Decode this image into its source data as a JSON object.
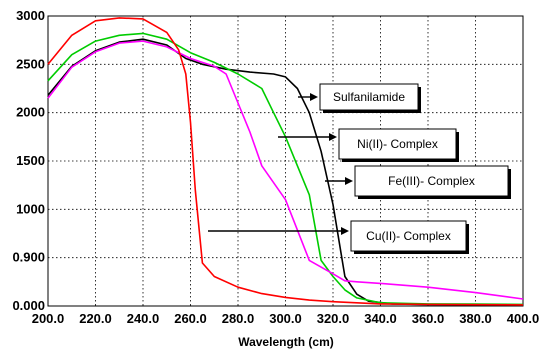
{
  "chart_data": {
    "type": "line",
    "title": "",
    "xlabel": "Wavelength (cm)",
    "ylabel": "",
    "xlim": [
      200,
      400
    ],
    "x_ticks": [
      "200.0",
      "220.0",
      "240.0",
      "260.0",
      "280.0",
      "300.0",
      "320.0",
      "340.0",
      "360.0",
      "380.0",
      "400.0"
    ],
    "y_ticks": [
      "0.000",
      "0.900",
      "1000",
      "1500",
      "2000",
      "2500",
      "3000"
    ],
    "grid": true,
    "series": [
      {
        "name": "Sulfanilamide",
        "color": "#000000",
        "x": [
          200,
          210,
          220,
          230,
          240,
          250,
          258,
          265,
          275,
          285,
          295,
          300,
          305,
          310,
          315,
          320,
          325,
          330,
          335,
          345,
          360,
          380,
          400
        ],
        "y": [
          2180,
          2480,
          2640,
          2730,
          2760,
          2700,
          2560,
          2500,
          2450,
          2420,
          2400,
          2370,
          2250,
          2000,
          1600,
          1050,
          550,
          220,
          90,
          40,
          30,
          25,
          20
        ]
      },
      {
        "name": "Ni(II)- Complex",
        "color": "#00cc00",
        "x": [
          200,
          210,
          220,
          230,
          240,
          250,
          260,
          270,
          280,
          290,
          295,
          300,
          305,
          310,
          315,
          320,
          325,
          330,
          340,
          360,
          380,
          400
        ],
        "y": [
          2330,
          2600,
          2740,
          2800,
          2820,
          2760,
          2620,
          2520,
          2400,
          2250,
          2000,
          1750,
          1450,
          1150,
          850,
          550,
          300,
          150,
          60,
          40,
          35,
          30
        ]
      },
      {
        "name": "Fe(III)- Complex",
        "color": "#ff00ff",
        "x": [
          200,
          210,
          220,
          230,
          240,
          250,
          260,
          270,
          275,
          280,
          285,
          290,
          300,
          310,
          320,
          325,
          330,
          340,
          360,
          380,
          400
        ],
        "y": [
          2150,
          2470,
          2630,
          2720,
          2740,
          2680,
          2560,
          2480,
          2400,
          2100,
          1800,
          1450,
          1100,
          850,
          600,
          470,
          450,
          420,
          350,
          250,
          130
        ]
      },
      {
        "name": "Cu(II)- Complex",
        "color": "#ff0000",
        "x": [
          200,
          210,
          220,
          230,
          240,
          250,
          255,
          258,
          260,
          262,
          265,
          270,
          280,
          290,
          300,
          310,
          320,
          330,
          340,
          360,
          380,
          400
        ],
        "y": [
          2500,
          2800,
          2950,
          2980,
          2970,
          2830,
          2650,
          2400,
          1900,
          1200,
          800,
          550,
          350,
          230,
          160,
          110,
          80,
          60,
          40,
          30,
          25,
          20
        ]
      }
    ],
    "annotations": [
      {
        "label": "Sulfanilamide",
        "series": "Sulfanilamide"
      },
      {
        "label": "Ni(II)- Complex",
        "series": "Ni(II)- Complex"
      },
      {
        "label": "Fe(III)- Complex",
        "series": "Fe(III)- Complex"
      },
      {
        "label": "Cu(II)- Complex",
        "series": "Cu(II)- Complex"
      }
    ]
  }
}
